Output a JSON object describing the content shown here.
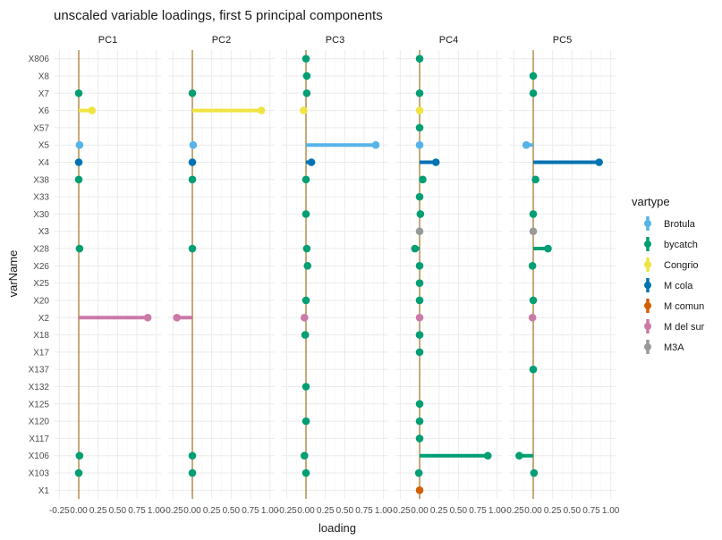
{
  "chart_data": {
    "type": "scatter",
    "title": "unscaled variable loadings, first 5 principal components",
    "xlabel": "loading",
    "ylabel": "varName",
    "panels": [
      "PC1",
      "PC2",
      "PC3",
      "PC4",
      "PC5"
    ],
    "xlim": [
      -0.25,
      1.0
    ],
    "x_ticks": [
      "-0.25",
      "0.00",
      "0.25",
      "0.50",
      "0.75",
      "1.00"
    ],
    "categories": [
      "X806",
      "X8",
      "X7",
      "X6",
      "X57",
      "X5",
      "X4",
      "X38",
      "X33",
      "X30",
      "X3",
      "X28",
      "X26",
      "X25",
      "X20",
      "X2",
      "X18",
      "X17",
      "X137",
      "X132",
      "X125",
      "X120",
      "X117",
      "X106",
      "X103",
      "X1"
    ],
    "legend": {
      "title": "vartype",
      "position": "right",
      "items": [
        {
          "label": "Brotula",
          "color": "#56B4E9"
        },
        {
          "label": "bycatch",
          "color": "#009E73"
        },
        {
          "label": "Congrio",
          "color": "#F0E442"
        },
        {
          "label": "M cola",
          "color": "#0072B2"
        },
        {
          "label": "M comun",
          "color": "#D55E00"
        },
        {
          "label": "M del sur",
          "color": "#CC79A7"
        },
        {
          "label": "M3A",
          "color": "#999999"
        }
      ]
    },
    "grid": true,
    "points": [
      {
        "panel": "PC1",
        "var": "X7",
        "value": 0.0,
        "type": "bycatch"
      },
      {
        "panel": "PC1",
        "var": "X6",
        "value": 0.17,
        "type": "Congrio"
      },
      {
        "panel": "PC1",
        "var": "X5",
        "value": 0.01,
        "type": "Brotula"
      },
      {
        "panel": "PC1",
        "var": "X4",
        "value": 0.0,
        "type": "M cola"
      },
      {
        "panel": "PC1",
        "var": "X38",
        "value": 0.0,
        "type": "bycatch"
      },
      {
        "panel": "PC1",
        "var": "X28",
        "value": 0.01,
        "type": "bycatch"
      },
      {
        "panel": "PC1",
        "var": "X2",
        "value": 0.89,
        "type": "M del sur"
      },
      {
        "panel": "PC1",
        "var": "X106",
        "value": 0.01,
        "type": "bycatch"
      },
      {
        "panel": "PC1",
        "var": "X103",
        "value": 0.0,
        "type": "bycatch"
      },
      {
        "panel": "PC2",
        "var": "X7",
        "value": 0.0,
        "type": "bycatch"
      },
      {
        "panel": "PC2",
        "var": "X6",
        "value": 0.89,
        "type": "Congrio"
      },
      {
        "panel": "PC2",
        "var": "X5",
        "value": 0.01,
        "type": "Brotula"
      },
      {
        "panel": "PC2",
        "var": "X4",
        "value": 0.0,
        "type": "M cola"
      },
      {
        "panel": "PC2",
        "var": "X38",
        "value": 0.0,
        "type": "bycatch"
      },
      {
        "panel": "PC2",
        "var": "X28",
        "value": 0.0,
        "type": "bycatch"
      },
      {
        "panel": "PC2",
        "var": "X2",
        "value": -0.2,
        "type": "M del sur"
      },
      {
        "panel": "PC2",
        "var": "X106",
        "value": 0.0,
        "type": "bycatch"
      },
      {
        "panel": "PC2",
        "var": "X103",
        "value": 0.0,
        "type": "bycatch"
      },
      {
        "panel": "PC3",
        "var": "X806",
        "value": 0.0,
        "type": "bycatch"
      },
      {
        "panel": "PC3",
        "var": "X8",
        "value": 0.01,
        "type": "bycatch"
      },
      {
        "panel": "PC3",
        "var": "X7",
        "value": 0.01,
        "type": "bycatch"
      },
      {
        "panel": "PC3",
        "var": "X6",
        "value": -0.03,
        "type": "Congrio"
      },
      {
        "panel": "PC3",
        "var": "X5",
        "value": 0.9,
        "type": "Brotula"
      },
      {
        "panel": "PC3",
        "var": "X4",
        "value": 0.07,
        "type": "M cola"
      },
      {
        "panel": "PC3",
        "var": "X38",
        "value": 0.0,
        "type": "bycatch"
      },
      {
        "panel": "PC3",
        "var": "X30",
        "value": 0.0,
        "type": "bycatch"
      },
      {
        "panel": "PC3",
        "var": "X28",
        "value": 0.01,
        "type": "bycatch"
      },
      {
        "panel": "PC3",
        "var": "X26",
        "value": 0.02,
        "type": "bycatch"
      },
      {
        "panel": "PC3",
        "var": "X20",
        "value": 0.0,
        "type": "bycatch"
      },
      {
        "panel": "PC3",
        "var": "X2",
        "value": -0.02,
        "type": "M del sur"
      },
      {
        "panel": "PC3",
        "var": "X18",
        "value": -0.01,
        "type": "bycatch"
      },
      {
        "panel": "PC3",
        "var": "X132",
        "value": 0.0,
        "type": "bycatch"
      },
      {
        "panel": "PC3",
        "var": "X120",
        "value": 0.0,
        "type": "bycatch"
      },
      {
        "panel": "PC3",
        "var": "X106",
        "value": -0.02,
        "type": "bycatch"
      },
      {
        "panel": "PC3",
        "var": "X103",
        "value": 0.0,
        "type": "bycatch"
      },
      {
        "panel": "PC4",
        "var": "X806",
        "value": 0.0,
        "type": "bycatch"
      },
      {
        "panel": "PC4",
        "var": "X7",
        "value": 0.0,
        "type": "bycatch"
      },
      {
        "panel": "PC4",
        "var": "X6",
        "value": 0.0,
        "type": "Congrio"
      },
      {
        "panel": "PC4",
        "var": "X57",
        "value": 0.0,
        "type": "bycatch"
      },
      {
        "panel": "PC4",
        "var": "X5",
        "value": 0.0,
        "type": "Brotula"
      },
      {
        "panel": "PC4",
        "var": "X4",
        "value": 0.21,
        "type": "M cola"
      },
      {
        "panel": "PC4",
        "var": "X38",
        "value": 0.04,
        "type": "bycatch"
      },
      {
        "panel": "PC4",
        "var": "X33",
        "value": 0.0,
        "type": "bycatch"
      },
      {
        "panel": "PC4",
        "var": "X30",
        "value": 0.01,
        "type": "bycatch"
      },
      {
        "panel": "PC4",
        "var": "X3",
        "value": 0.0,
        "type": "M3A"
      },
      {
        "panel": "PC4",
        "var": "X28",
        "value": -0.06,
        "type": "bycatch"
      },
      {
        "panel": "PC4",
        "var": "X26",
        "value": 0.0,
        "type": "bycatch"
      },
      {
        "panel": "PC4",
        "var": "X25",
        "value": 0.0,
        "type": "bycatch"
      },
      {
        "panel": "PC4",
        "var": "X20",
        "value": 0.0,
        "type": "bycatch"
      },
      {
        "panel": "PC4",
        "var": "X2",
        "value": 0.0,
        "type": "M del sur"
      },
      {
        "panel": "PC4",
        "var": "X18",
        "value": 0.0,
        "type": "bycatch"
      },
      {
        "panel": "PC4",
        "var": "X17",
        "value": 0.0,
        "type": "bycatch"
      },
      {
        "panel": "PC4",
        "var": "X125",
        "value": 0.0,
        "type": "bycatch"
      },
      {
        "panel": "PC4",
        "var": "X120",
        "value": 0.0,
        "type": "bycatch"
      },
      {
        "panel": "PC4",
        "var": "X117",
        "value": 0.0,
        "type": "bycatch"
      },
      {
        "panel": "PC4",
        "var": "X106",
        "value": 0.88,
        "type": "bycatch"
      },
      {
        "panel": "PC4",
        "var": "X103",
        "value": -0.01,
        "type": "bycatch"
      },
      {
        "panel": "PC4",
        "var": "X1",
        "value": 0.0,
        "type": "M comun"
      },
      {
        "panel": "PC5",
        "var": "X8",
        "value": 0.0,
        "type": "bycatch"
      },
      {
        "panel": "PC5",
        "var": "X7",
        "value": 0.0,
        "type": "bycatch"
      },
      {
        "panel": "PC5",
        "var": "X5",
        "value": -0.09,
        "type": "Brotula"
      },
      {
        "panel": "PC5",
        "var": "X4",
        "value": 0.85,
        "type": "M cola"
      },
      {
        "panel": "PC5",
        "var": "X38",
        "value": 0.03,
        "type": "bycatch"
      },
      {
        "panel": "PC5",
        "var": "X30",
        "value": 0.0,
        "type": "bycatch"
      },
      {
        "panel": "PC5",
        "var": "X3",
        "value": 0.0,
        "type": "M3A"
      },
      {
        "panel": "PC5",
        "var": "X28",
        "value": 0.19,
        "type": "bycatch"
      },
      {
        "panel": "PC5",
        "var": "X26",
        "value": -0.01,
        "type": "bycatch"
      },
      {
        "panel": "PC5",
        "var": "X20",
        "value": 0.0,
        "type": "bycatch"
      },
      {
        "panel": "PC5",
        "var": "X2",
        "value": -0.01,
        "type": "M del sur"
      },
      {
        "panel": "PC5",
        "var": "X137",
        "value": 0.0,
        "type": "bycatch"
      },
      {
        "panel": "PC5",
        "var": "X106",
        "value": -0.18,
        "type": "bycatch"
      },
      {
        "panel": "PC5",
        "var": "X103",
        "value": 0.01,
        "type": "bycatch"
      }
    ]
  }
}
